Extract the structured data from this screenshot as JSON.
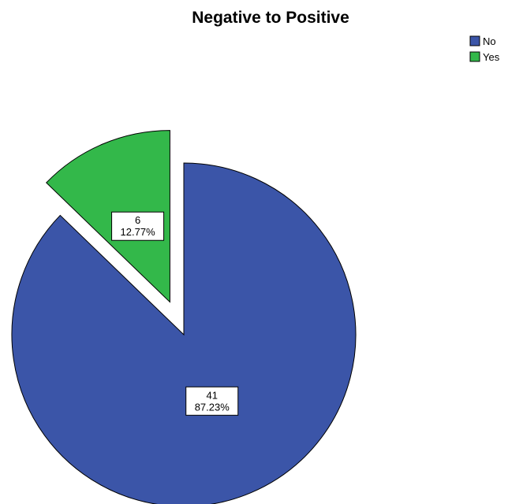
{
  "chart_data": {
    "type": "pie",
    "title": "Negative to Positive",
    "slices": [
      {
        "name": "No",
        "count": 41,
        "percent_label": "87.23%",
        "percent": 87.23,
        "color": "#3b55a8",
        "exploded": false
      },
      {
        "name": "Yes",
        "count": 6,
        "percent_label": "12.77%",
        "percent": 12.77,
        "color": "#33b84a",
        "exploded": true
      }
    ],
    "legend_position": "top-right"
  }
}
